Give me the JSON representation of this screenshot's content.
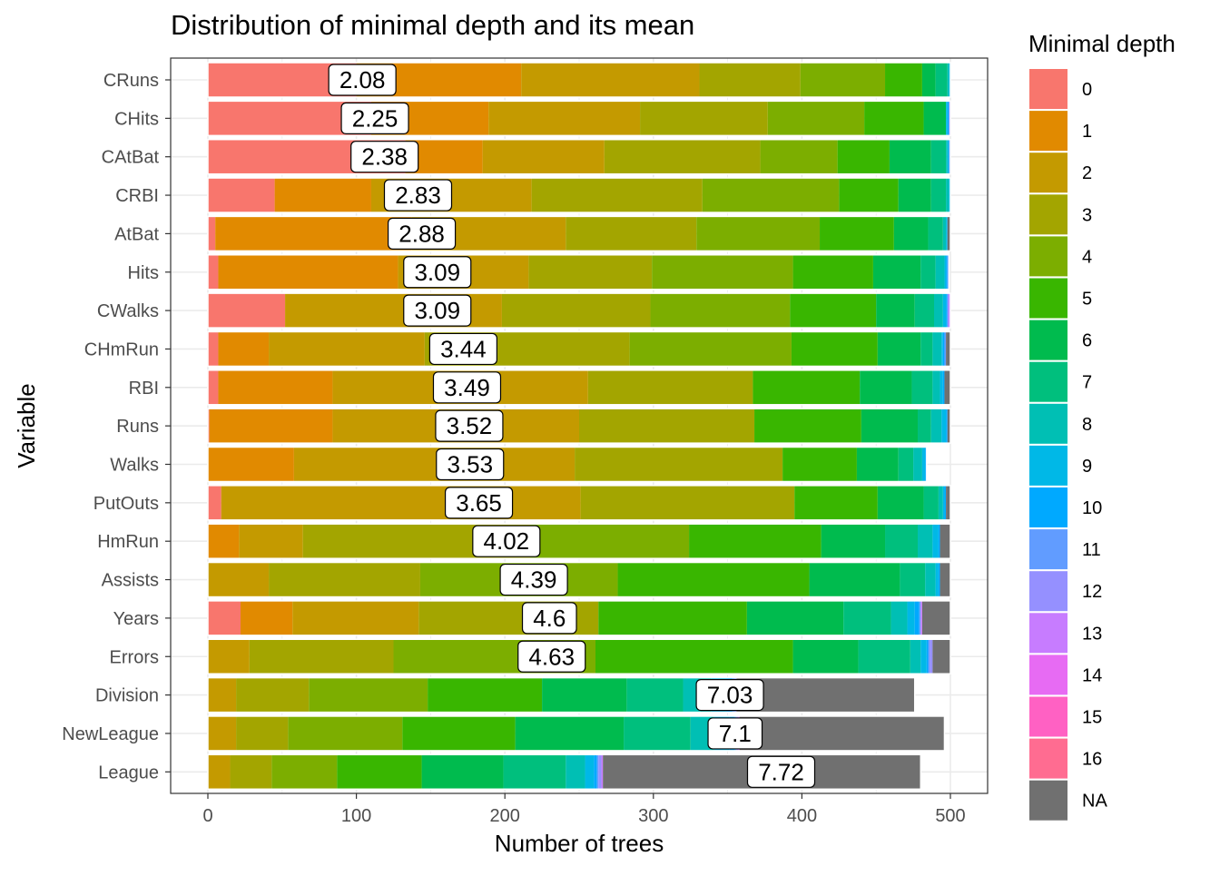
{
  "chart_data": {
    "type": "bar",
    "orientation": "horizontal",
    "stacked": true,
    "title": "Distribution of minimal depth and its mean",
    "xlabel": "Number of trees",
    "ylabel": "Variable",
    "xlim": [
      0,
      500
    ],
    "xticks": [
      "0",
      "100",
      "200",
      "300",
      "400",
      "500"
    ],
    "grid": true,
    "legend_position": "right",
    "legend_title": "Minimal depth",
    "legend": [
      {
        "label": "0",
        "color": "#F8766D"
      },
      {
        "label": "1",
        "color": "#E18A00"
      },
      {
        "label": "2",
        "color": "#C49A00"
      },
      {
        "label": "3",
        "color": "#A3A500"
      },
      {
        "label": "4",
        "color": "#7CAE00"
      },
      {
        "label": "5",
        "color": "#39B600"
      },
      {
        "label": "6",
        "color": "#00BB4E"
      },
      {
        "label": "7",
        "color": "#00BF7D"
      },
      {
        "label": "8",
        "color": "#00BFB4"
      },
      {
        "label": "9",
        "color": "#00B8E7"
      },
      {
        "label": "10",
        "color": "#00A9FF"
      },
      {
        "label": "11",
        "color": "#619CFF"
      },
      {
        "label": "12",
        "color": "#9590FF"
      },
      {
        "label": "13",
        "color": "#C77CFF"
      },
      {
        "label": "14",
        "color": "#E76BF3"
      },
      {
        "label": "15",
        "color": "#FF61C3"
      },
      {
        "label": "16",
        "color": "#FF6C91"
      },
      {
        "label": "NA",
        "color": "#707070"
      }
    ],
    "rows": [
      {
        "variable": "CRuns",
        "mean": "2.08",
        "mean_value": 2.08,
        "counts": [
          100,
          111,
          120,
          68,
          57,
          25,
          9,
          8,
          1,
          1,
          0,
          0,
          0,
          0,
          0,
          0,
          0,
          0
        ]
      },
      {
        "variable": "CHits",
        "mean": "2.25",
        "mean_value": 2.25,
        "counts": [
          110,
          79,
          102,
          86,
          65,
          40,
          15,
          0,
          0,
          1,
          1,
          0,
          1,
          0,
          0,
          0,
          0,
          0
        ]
      },
      {
        "variable": "CAtBat",
        "mean": "2.38",
        "mean_value": 2.38,
        "counts": [
          133,
          52,
          82,
          105,
          52,
          35,
          28,
          10,
          1,
          1,
          0,
          1,
          0,
          0,
          0,
          0,
          0,
          0
        ]
      },
      {
        "variable": "CRBI",
        "mean": "2.83",
        "mean_value": 2.83,
        "counts": [
          45,
          65,
          108,
          115,
          92,
          40,
          22,
          10,
          2,
          1,
          0,
          0,
          0,
          0,
          0,
          0,
          0,
          0
        ]
      },
      {
        "variable": "AtBat",
        "mean": "2.88",
        "mean_value": 2.88,
        "counts": [
          5,
          132,
          104,
          88,
          83,
          50,
          23,
          10,
          2,
          1,
          0,
          0,
          0,
          0,
          0,
          0,
          0,
          2
        ]
      },
      {
        "variable": "Hits",
        "mean": "3.09",
        "mean_value": 3.09,
        "counts": [
          7,
          121,
          88,
          83,
          95,
          54,
          32,
          10,
          6,
          1,
          1,
          1,
          0,
          0,
          0,
          0,
          0,
          0
        ]
      },
      {
        "variable": "CWalks",
        "mean": "3.09",
        "mean_value": 3.09,
        "counts": [
          52,
          0,
          146,
          100,
          94,
          58,
          26,
          13,
          6,
          2,
          1,
          0,
          1,
          1,
          0,
          0,
          0,
          0
        ]
      },
      {
        "variable": "CHmRun",
        "mean": "3.44",
        "mean_value": 3.44,
        "counts": [
          7,
          34,
          105,
          138,
          109,
          58,
          29,
          8,
          6,
          1,
          1,
          1,
          0,
          0,
          0,
          0,
          0,
          3
        ]
      },
      {
        "variable": "RBI",
        "mean": "3.49",
        "mean_value": 3.49,
        "counts": [
          7,
          77,
          172,
          111,
          0,
          72,
          35,
          14,
          5,
          2,
          1,
          0,
          0,
          0,
          0,
          0,
          0,
          4
        ]
      },
      {
        "variable": "Runs",
        "mean": "3.52",
        "mean_value": 3.52,
        "counts": [
          1,
          83,
          166,
          118,
          0,
          72,
          38,
          9,
          7,
          3,
          1,
          0,
          0,
          0,
          0,
          0,
          0,
          2
        ]
      },
      {
        "variable": "Walks",
        "mean": "3.53",
        "mean_value": 3.53,
        "counts": [
          0,
          58,
          189,
          140,
          0,
          50,
          28,
          10,
          6,
          2,
          1,
          0,
          0,
          0,
          0,
          0,
          0,
          0
        ]
      },
      {
        "variable": "PutOuts",
        "mean": "3.65",
        "mean_value": 3.65,
        "counts": [
          9,
          0,
          242,
          144,
          0,
          56,
          31,
          10,
          3,
          1,
          1,
          0,
          0,
          0,
          0,
          0,
          0,
          3
        ]
      },
      {
        "variable": "HmRun",
        "mean": "4.02",
        "mean_value": 4.02,
        "counts": [
          0,
          21,
          43,
          153,
          107,
          89,
          43,
          22,
          10,
          4,
          1,
          0,
          0,
          0,
          0,
          0,
          0,
          7
        ]
      },
      {
        "variable": "Assists",
        "mean": "4.39",
        "mean_value": 4.39,
        "counts": [
          0,
          0,
          41,
          102,
          133,
          129,
          61,
          17,
          7,
          2,
          1,
          0,
          0,
          0,
          0,
          0,
          0,
          7
        ]
      },
      {
        "variable": "Years",
        "mean": "4.6",
        "mean_value": 4.6,
        "counts": [
          22,
          35,
          85,
          121,
          0,
          100,
          65,
          32,
          11,
          5,
          3,
          1,
          0,
          1,
          0,
          0,
          0,
          19
        ]
      },
      {
        "variable": "Errors",
        "mean": "4.63",
        "mean_value": 4.63,
        "counts": [
          0,
          0,
          28,
          97,
          136,
          133,
          44,
          35,
          7,
          4,
          1,
          1,
          2,
          0,
          0,
          0,
          0,
          12
        ]
      },
      {
        "variable": "Division",
        "mean": "7.03",
        "mean_value": 7.03,
        "counts": [
          0,
          0,
          19,
          49,
          80,
          77,
          57,
          38,
          19,
          10,
          4,
          2,
          1,
          0,
          0,
          0,
          0,
          120
        ]
      },
      {
        "variable": "NewLeague",
        "mean": "7.1",
        "mean_value": 7.1,
        "counts": [
          0,
          0,
          19,
          35,
          77,
          76,
          73,
          45,
          16,
          10,
          4,
          1,
          1,
          1,
          0,
          0,
          0,
          138
        ]
      },
      {
        "variable": "League",
        "mean": "7.72",
        "mean_value": 7.72,
        "counts": [
          0,
          0,
          15,
          28,
          44,
          57,
          55,
          42,
          13,
          6,
          2,
          1,
          2,
          1,
          0,
          0,
          0,
          214
        ]
      }
    ]
  }
}
